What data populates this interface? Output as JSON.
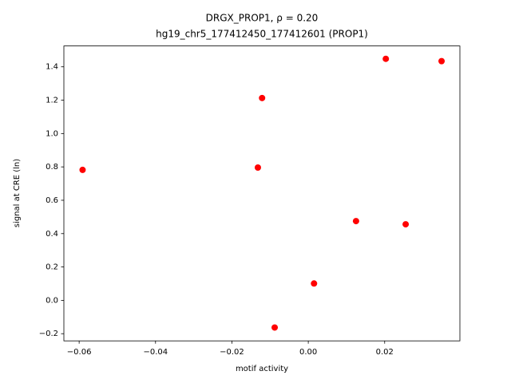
{
  "chart_data": {
    "type": "scatter",
    "title": "DRGX_PROP1, ρ = 0.20",
    "subtitle": "hg19_chr5_177412450_177412601 (PROP1)",
    "x_label": "motif activity",
    "y_label": "signal at CRE (ln)",
    "color": "#ff0000",
    "x": [
      -0.0591,
      -0.0132,
      -0.0121,
      -0.0088,
      0.0015,
      0.0125,
      0.0203,
      0.0255,
      0.0349
    ],
    "y": [
      0.782,
      0.796,
      1.213,
      -0.163,
      0.101,
      0.475,
      1.448,
      0.456,
      1.434
    ],
    "xlim": [
      -0.064,
      0.0397
    ],
    "ylim": [
      -0.243,
      1.525
    ],
    "xticks": [
      {
        "value": -0.06,
        "label": "−0.06"
      },
      {
        "value": -0.04,
        "label": "−0.04"
      },
      {
        "value": -0.02,
        "label": "−0.02"
      },
      {
        "value": 0,
        "label": "0.00"
      },
      0.02
    ],
    "yticks": [
      {
        "value": -0.2,
        "label": "−0.2"
      },
      {
        "value": 0,
        "label": "0.0"
      },
      0.2,
      0.4,
      0.6,
      0.8,
      {
        "value": 1,
        "label": "1.0"
      },
      1.2,
      1.4
    ],
    "grid": false
  }
}
